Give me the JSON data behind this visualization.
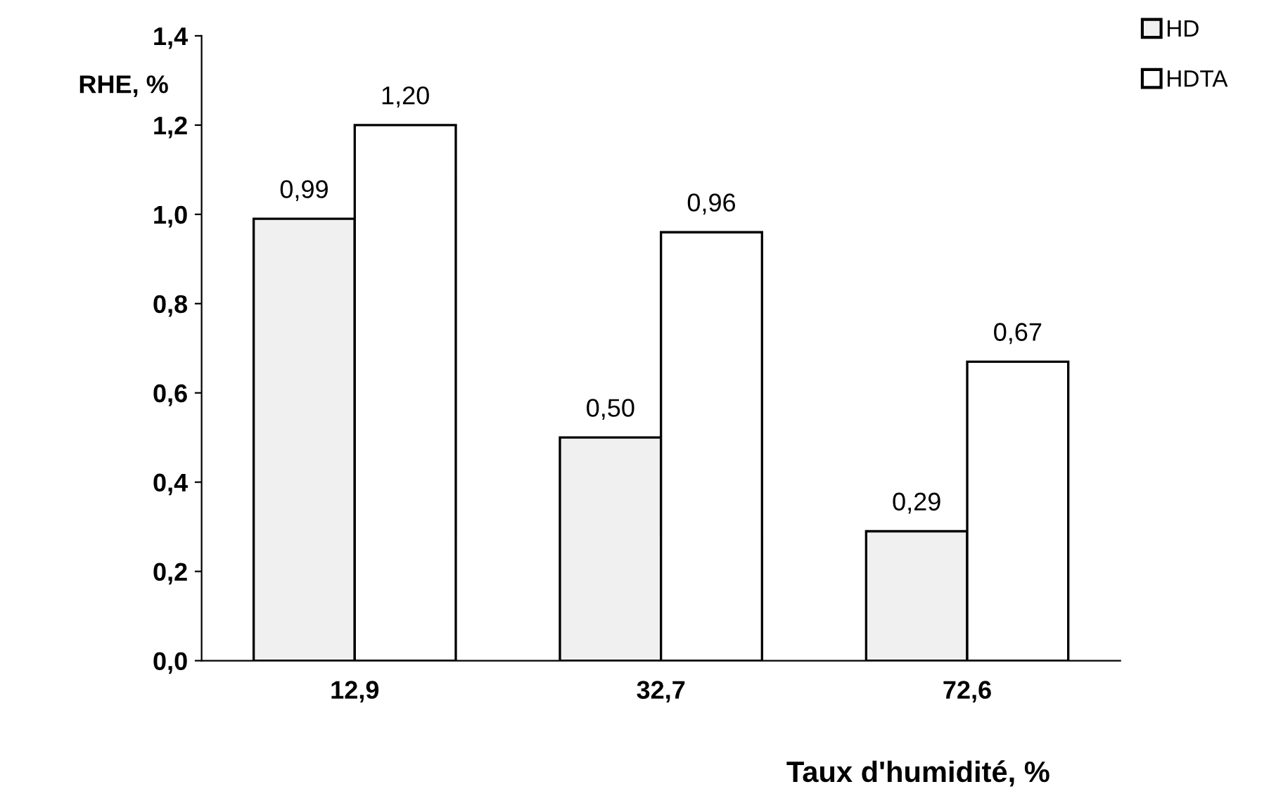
{
  "chart_data": {
    "type": "bar",
    "ylabel": "RHE, %",
    "xlabel": "Taux d'humidité, %",
    "categories": [
      "12,9",
      "32,7",
      "72,6"
    ],
    "series": [
      {
        "name": "HD",
        "color": "#f0f0f0",
        "values": [
          0.99,
          0.5,
          0.29
        ],
        "value_labels": [
          "0,99",
          "0,50",
          "0,29"
        ]
      },
      {
        "name": "HDTA",
        "color": "#ffffff",
        "values": [
          1.2,
          0.96,
          0.67
        ],
        "value_labels": [
          "1,20",
          "0,96",
          "0,67"
        ]
      }
    ],
    "ylim": [
      0,
      1.4
    ],
    "yticks": [
      {
        "value": 0,
        "label": "0,0"
      },
      {
        "value": 0.2,
        "label": "0,2"
      },
      {
        "value": 0.4,
        "label": "0,4"
      },
      {
        "value": 0.6,
        "label": "0,6"
      },
      {
        "value": 0.8,
        "label": "0,8"
      },
      {
        "value": 1.0,
        "label": "1,0"
      },
      {
        "value": 1.2,
        "label": "1,2"
      },
      {
        "value": 1.4,
        "label": "1,4"
      }
    ],
    "grid": false,
    "legend": "top right"
  }
}
